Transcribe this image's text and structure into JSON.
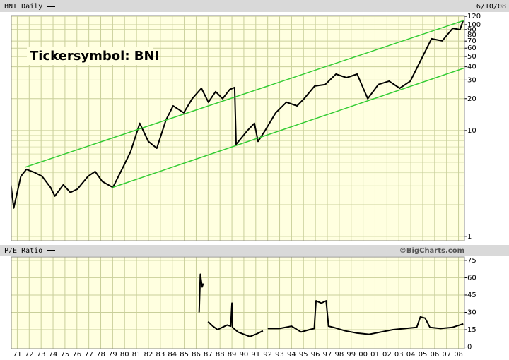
{
  "chart_data": [
    {
      "type": "line",
      "title": "BNI Daily",
      "date": "6/10/08",
      "annotation": "Tickersymbol: BNI",
      "log_scale": true,
      "grid": true,
      "xlim": [
        1970.5,
        2008.5
      ],
      "ylim": [
        0.91,
        122
      ],
      "yticks": [
        1,
        10,
        20,
        30,
        40,
        50,
        60,
        70,
        80,
        90,
        100,
        120
      ],
      "y_minor_gridlines": [
        2,
        3,
        4,
        5,
        6,
        7,
        8,
        9
      ],
      "series": [
        {
          "color": "#000000",
          "x": [
            1970.47,
            1970.7,
            1971.3,
            1971.77,
            1972.48,
            1973.08,
            1973.79,
            1974.15,
            1974.86,
            1975.45,
            1976.05,
            1976.94,
            1977.53,
            1978.13,
            1979.02,
            1979.91,
            1980.5,
            1981.27,
            1981.99,
            1982.7,
            1983.47,
            1984.07,
            1984.96,
            1985.67,
            1986.44,
            1987.03,
            1987.63,
            1988.22,
            1988.82,
            1989.23,
            1989.35,
            1990.3,
            1990.89,
            1991.19,
            1991.78,
            1992.67,
            1993.57,
            1994.46,
            1995.05,
            1995.94,
            1996.83,
            1997.72,
            1998.61,
            1999.5,
            2000.39,
            2001.28,
            2002.18,
            2003.07,
            2003.96,
            2004.85,
            2005.74,
            2006.63,
            2007.52,
            2008.12,
            2008.41
          ],
          "values": [
            3.07,
            1.85,
            3.7,
            4.3,
            4.0,
            3.7,
            2.9,
            2.4,
            3.07,
            2.6,
            2.8,
            3.7,
            4.1,
            3.3,
            2.9,
            4.6,
            6.3,
            11.7,
            7.9,
            6.8,
            12.6,
            17.1,
            14.7,
            20,
            25.1,
            18.5,
            23.3,
            20,
            24.4,
            25.5,
            7.4,
            10,
            11.7,
            7.9,
            10,
            14.7,
            18.5,
            17.1,
            20,
            26.3,
            27.2,
            34.1,
            31.6,
            34.1,
            20,
            27.2,
            29.3,
            25.1,
            29.3,
            46.4,
            73.6,
            70.3,
            92.6,
            89.7,
            111
          ]
        },
        {
          "color": "#33cc33",
          "x": [
            1971.65,
            2008.5
          ],
          "values": [
            4.5,
            110
          ]
        },
        {
          "color": "#33cc33",
          "x": [
            1979.0,
            2008.5
          ],
          "values": [
            2.9,
            39
          ]
        }
      ]
    },
    {
      "type": "line",
      "title": "P/E Ratio",
      "source": "©BigCharts.com",
      "log_scale": false,
      "grid": true,
      "xlim": [
        1970.5,
        2008.5
      ],
      "ylim": [
        -1.5,
        78
      ],
      "yticks": [
        0,
        15,
        30,
        45,
        60,
        75
      ],
      "xticks": [
        {
          "value": 1971,
          "label": "71"
        },
        {
          "value": 1972,
          "label": "72"
        },
        {
          "value": 1973,
          "label": "73"
        },
        {
          "value": 1974,
          "label": "74"
        },
        {
          "value": 1975,
          "label": "75"
        },
        {
          "value": 1976,
          "label": "76"
        },
        {
          "value": 1977,
          "label": "77"
        },
        {
          "value": 1978,
          "label": "78"
        },
        {
          "value": 1979,
          "label": "79"
        },
        {
          "value": 1980,
          "label": "80"
        },
        {
          "value": 1981,
          "label": "81"
        },
        {
          "value": 1982,
          "label": "82"
        },
        {
          "value": 1983,
          "label": "83"
        },
        {
          "value": 1984,
          "label": "84"
        },
        {
          "value": 1985,
          "label": "85"
        },
        {
          "value": 1986,
          "label": "86"
        },
        {
          "value": 1987,
          "label": "87"
        },
        {
          "value": 1988,
          "label": "88"
        },
        {
          "value": 1989,
          "label": "89"
        },
        {
          "value": 1990,
          "label": "90"
        },
        {
          "value": 1991,
          "label": "91"
        },
        {
          "value": 1992,
          "label": "92"
        },
        {
          "value": 1993,
          "label": "93"
        },
        {
          "value": 1994,
          "label": "94"
        },
        {
          "value": 1995,
          "label": "95"
        },
        {
          "value": 1996,
          "label": "96"
        },
        {
          "value": 1997,
          "label": "97"
        },
        {
          "value": 1998,
          "label": "98"
        },
        {
          "value": 1999,
          "label": "99"
        },
        {
          "value": 2000,
          "label": "00"
        },
        {
          "value": 2001,
          "label": "01"
        },
        {
          "value": 2002,
          "label": "02"
        },
        {
          "value": 2003,
          "label": "03"
        },
        {
          "value": 2004,
          "label": "04"
        },
        {
          "value": 2005,
          "label": "05"
        },
        {
          "value": 2006,
          "label": "06"
        },
        {
          "value": 2007,
          "label": "07"
        },
        {
          "value": 2008,
          "label": "08"
        }
      ],
      "series": [
        {
          "color": "#000000",
          "x": [
            1986.25,
            1986.35,
            1986.5,
            1986.6,
            1986.8,
            1987.0,
            1987.4,
            1987.8,
            1988.2,
            1988.6,
            1988.9,
            1989.0,
            1989.05,
            1989.5,
            1990.0,
            1990.5,
            1991.0,
            1991.6,
            1991.8,
            1992.0,
            1993.0,
            1994.0,
            1994.8,
            1995.5,
            1995.9,
            1996.05,
            1996.5,
            1996.9,
            1997.1,
            1997.5,
            1998.5,
            1999.5,
            2000.5,
            2001.5,
            2002.5,
            2003.5,
            2004.5,
            2004.8,
            2005.2,
            2005.6,
            2006.5,
            2007.5,
            2008.4
          ],
          "values": [
            30,
            63,
            52,
            55,
            null,
            22,
            18,
            15,
            17,
            19,
            18,
            38,
            17,
            13,
            11,
            9,
            11,
            14,
            null,
            16,
            16,
            18,
            13,
            15,
            16,
            40,
            38,
            40,
            18,
            17,
            14,
            12,
            11,
            13,
            15,
            16,
            17,
            26,
            25,
            17,
            16,
            17,
            20
          ]
        }
      ]
    }
  ]
}
